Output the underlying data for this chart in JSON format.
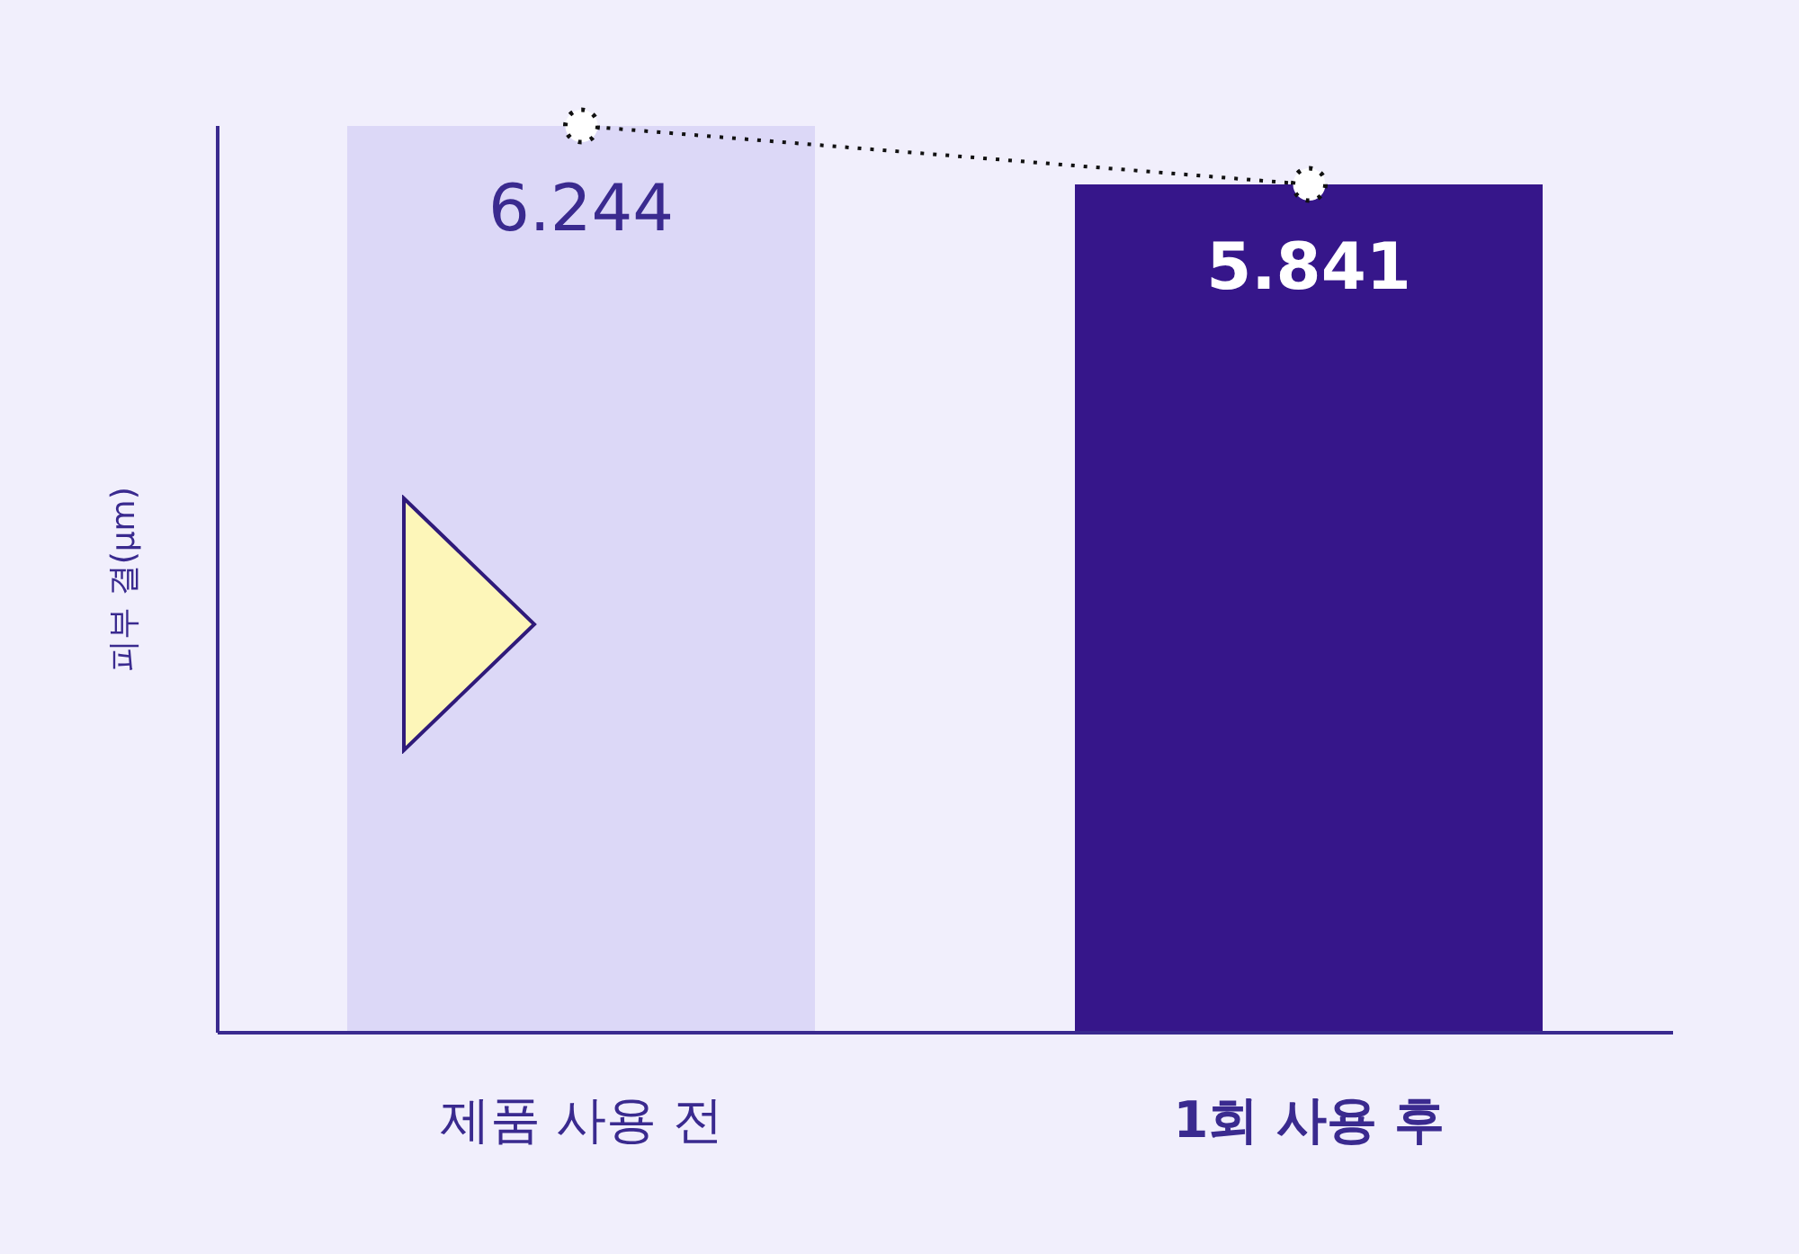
{
  "chart_data": {
    "type": "bar",
    "ylabel": "피부 결(μm)",
    "categories": [
      "제품 사용 전",
      "1회 사용 후"
    ],
    "series": [
      {
        "values": [
          6.244,
          5.841
        ],
        "colors": [
          "#dcd8f7",
          "#36168a"
        ],
        "value_labels": [
          "6.244",
          "5.841"
        ]
      },
      {
        "type": "line",
        "color": "#111111",
        "values": [
          6.244,
          5.841
        ],
        "marker": "circle",
        "line_style": "dotted"
      }
    ],
    "tick_labels": "x"
  }
}
